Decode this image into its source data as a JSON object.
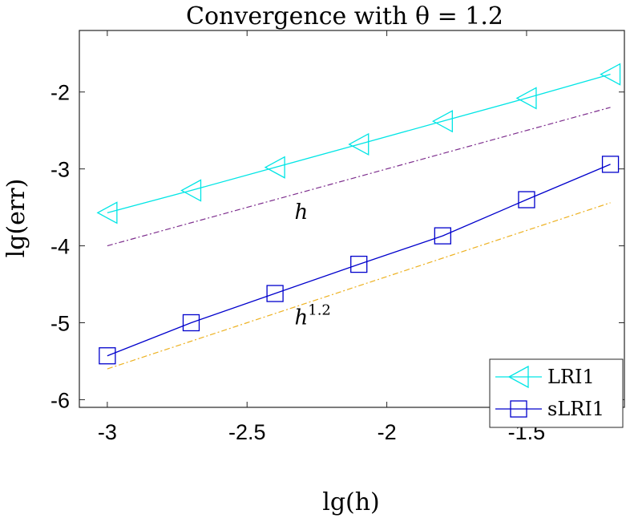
{
  "chart_data": {
    "type": "line",
    "title": "Convergence with θ = 1.2",
    "xlabel": "lg(h)",
    "ylabel": "lg(err)",
    "xlim": [
      -3.1,
      -1.15
    ],
    "ylim": [
      -6.1,
      -1.2
    ],
    "xticks": [
      -3,
      -2.5,
      -2,
      -1.5
    ],
    "xtick_labels": [
      "-3",
      "-2.5",
      "-2",
      "-1.5"
    ],
    "yticks": [
      -6,
      -5,
      -4,
      -3,
      -2
    ],
    "ytick_labels": [
      "-6",
      "-5",
      "-4",
      "-3",
      "-2"
    ],
    "grid": false,
    "legend_position": "bottom-right",
    "series": [
      {
        "name": "LRI1",
        "color": "#00e5e5",
        "marker": "triangle-left",
        "x": [
          -3.0,
          -2.7,
          -2.4,
          -2.1,
          -1.8,
          -1.5,
          -1.2
        ],
        "y": [
          -3.57,
          -3.28,
          -2.98,
          -2.68,
          -2.38,
          -2.08,
          -1.77
        ]
      },
      {
        "name": "sLRI1",
        "color": "#0000cc",
        "marker": "square",
        "x": [
          -3.0,
          -2.7,
          -2.4,
          -2.1,
          -1.8,
          -1.5,
          -1.2
        ],
        "y": [
          -5.43,
          -5.0,
          -4.62,
          -4.24,
          -3.87,
          -3.4,
          -2.94
        ]
      }
    ],
    "reference_lines": [
      {
        "label": "h",
        "slope": 1,
        "color": "#7e2f8e",
        "style": "dash-dot",
        "x": [
          -3.0,
          -1.2
        ],
        "y": [
          -4.0,
          -2.2
        ]
      },
      {
        "label": "h",
        "sup": "1.2",
        "slope": 1.2,
        "color": "#edb120",
        "style": "dash-dot",
        "x": [
          -3.0,
          -1.2
        ],
        "y": [
          -5.6,
          -3.44
        ]
      }
    ],
    "annotations": [
      {
        "text": "h",
        "x": -2.33,
        "y": -3.65
      },
      {
        "text": "h",
        "sup": "1.2",
        "x": -2.33,
        "y": -5.02
      }
    ]
  }
}
